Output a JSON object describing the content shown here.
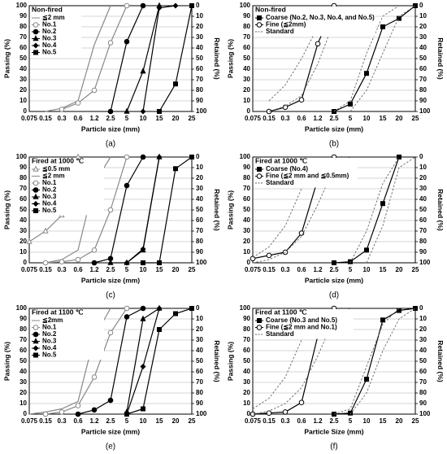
{
  "chart_data": [
    {
      "type": "line",
      "panel": "(a)",
      "title": "Non-fired",
      "xlabel": "Particle size (mm)",
      "ylabel": "Passing (%)",
      "y2label": "Retained (%)",
      "categories": [
        "0.075",
        "0.15",
        "0.3",
        "0.6",
        "1.2",
        "2.5",
        "5",
        "10",
        "15",
        "20",
        "25"
      ],
      "ylim": [
        0,
        100
      ],
      "yticks": [
        0,
        10,
        20,
        30,
        40,
        50,
        60,
        70,
        80,
        90,
        100
      ],
      "y2lim": [
        100,
        0
      ],
      "y2ticks": [
        0,
        10,
        20,
        30,
        40,
        50,
        60,
        70,
        80,
        90,
        100
      ],
      "grid": true,
      "series": [
        {
          "name": "≦2 mm",
          "color": "#888888",
          "marker": "none",
          "values": [
            null,
            0,
            3,
            10,
            63,
            100,
            null,
            null,
            null,
            null,
            null
          ]
        },
        {
          "name": "No.1",
          "color": "#888888",
          "marker": "open-circle",
          "values": [
            null,
            null,
            2,
            8,
            20,
            65,
            100,
            null,
            null,
            null,
            null
          ]
        },
        {
          "name": "No.2",
          "color": "#000000",
          "marker": "circle",
          "values": [
            null,
            null,
            null,
            null,
            null,
            0,
            66,
            100,
            null,
            null,
            null
          ]
        },
        {
          "name": "No.3",
          "color": "#000000",
          "marker": "triangle",
          "values": [
            null,
            null,
            null,
            null,
            null,
            null,
            0,
            38,
            100,
            null,
            null
          ]
        },
        {
          "name": "No.4",
          "color": "#000000",
          "marker": "diamond",
          "values": [
            null,
            null,
            null,
            null,
            null,
            null,
            null,
            0,
            98,
            100,
            null
          ]
        },
        {
          "name": "No.5",
          "color": "#000000",
          "marker": "square",
          "values": [
            null,
            null,
            null,
            null,
            null,
            null,
            null,
            null,
            0,
            26,
            100
          ]
        }
      ]
    },
    {
      "type": "line",
      "panel": "(b)",
      "title": "Non-fired",
      "xlabel": "Particle size (mm)",
      "ylabel": "Passing (%)",
      "y2label": "Retained (%)",
      "categories": [
        "0.075",
        "0.15",
        "0.3",
        "0.6",
        "1.2",
        "2.5",
        "5",
        "10",
        "15",
        "20",
        "25"
      ],
      "ylim": [
        0,
        100
      ],
      "yticks": [
        0,
        10,
        20,
        30,
        40,
        50,
        60,
        70,
        80,
        90,
        100
      ],
      "y2lim": [
        100,
        0
      ],
      "y2ticks": [
        0,
        10,
        20,
        30,
        40,
        50,
        60,
        70,
        80,
        90,
        100
      ],
      "grid": true,
      "series": [
        {
          "name": "Coarse (No.2, No.3, No.4, and No.5)",
          "color": "#000000",
          "marker": "square",
          "values": [
            null,
            null,
            null,
            null,
            null,
            0,
            7,
            36,
            80,
            88,
            100
          ]
        },
        {
          "name": "Fine (≦2mm)",
          "color": "#000000",
          "marker": "open-circle",
          "values": [
            null,
            0,
            4,
            11,
            64,
            100,
            null,
            null,
            null,
            null,
            null
          ]
        },
        {
          "name": "Standard",
          "color": "#666666",
          "marker": "none",
          "dash": true,
          "lines": [
            [
              null,
              10,
              25,
              50,
              80,
              100,
              null,
              null,
              null,
              null,
              null
            ],
            [
              null,
              0,
              5,
              15,
              45,
              85,
              100,
              null,
              null,
              null,
              null
            ],
            [
              null,
              null,
              null,
              null,
              null,
              0,
              10,
              55,
              90,
              100,
              null
            ],
            [
              null,
              null,
              null,
              null,
              null,
              null,
              0,
              20,
              55,
              90,
              100
            ]
          ]
        }
      ]
    },
    {
      "type": "line",
      "panel": "(c)",
      "title": "Fired at 1000 ℃",
      "xlabel": "Particle size (mm)",
      "ylabel": "Passing (%)",
      "y2label": "Retained (%)",
      "categories": [
        "0.075",
        "0.15",
        "0.3",
        "0.6",
        "1.2",
        "2.5",
        "5",
        "10",
        "15",
        "20",
        "25"
      ],
      "ylim": [
        0,
        100
      ],
      "yticks": [
        0,
        10,
        20,
        30,
        40,
        50,
        60,
        70,
        80,
        90,
        100
      ],
      "y2lim": [
        100,
        0
      ],
      "y2ticks": [
        0,
        10,
        20,
        30,
        40,
        50,
        60,
        70,
        80,
        90,
        100
      ],
      "grid": true,
      "series": [
        {
          "name": "≦0.5 mm",
          "color": "#888888",
          "marker": "open-triangle",
          "values": [
            20,
            30,
            45,
            100,
            null,
            null,
            null,
            null,
            null,
            null,
            null
          ]
        },
        {
          "name": "≦2 mm",
          "color": "#888888",
          "marker": "none",
          "values": [
            null,
            0,
            3,
            12,
            75,
            100,
            null,
            null,
            null,
            null,
            null
          ]
        },
        {
          "name": "No.1",
          "color": "#888888",
          "marker": "open-circle",
          "values": [
            null,
            0,
            1,
            3,
            12,
            50,
            100,
            null,
            null,
            null,
            null
          ]
        },
        {
          "name": "No.2",
          "color": "#000000",
          "marker": "circle",
          "values": [
            null,
            null,
            null,
            null,
            0,
            4,
            73,
            100,
            null,
            null,
            null
          ]
        },
        {
          "name": "No.3",
          "color": "#000000",
          "marker": "triangle",
          "values": [
            null,
            null,
            null,
            null,
            null,
            0,
            0,
            12,
            100,
            null,
            null
          ]
        },
        {
          "name": "No.4",
          "color": "#000000",
          "marker": "diamond",
          "values": [
            null,
            null,
            null,
            null,
            null,
            null,
            0,
            13,
            100,
            null,
            null
          ]
        },
        {
          "name": "No.5",
          "color": "#000000",
          "marker": "square",
          "values": [
            null,
            null,
            null,
            null,
            null,
            null,
            null,
            0,
            0,
            89,
            100
          ]
        }
      ]
    },
    {
      "type": "line",
      "panel": "(d)",
      "title": "Fired at 1000 ℃",
      "xlabel": "Particle size (mm)",
      "ylabel": "Passing (%)",
      "y2label": "Retained (%)",
      "categories": [
        "0.075",
        "0.15",
        "0.3",
        "0.6",
        "1.2",
        "2.5",
        "5",
        "10",
        "15",
        "20",
        "25"
      ],
      "ylim": [
        0,
        100
      ],
      "yticks": [
        0,
        10,
        20,
        30,
        40,
        50,
        60,
        70,
        80,
        90,
        100
      ],
      "y2lim": [
        100,
        0
      ],
      "y2ticks": [
        0,
        10,
        20,
        30,
        40,
        50,
        60,
        70,
        80,
        90,
        100
      ],
      "grid": true,
      "series": [
        {
          "name": "Coarse (No.4)",
          "color": "#000000",
          "marker": "square",
          "values": [
            null,
            null,
            null,
            null,
            null,
            0,
            1,
            12,
            56,
            100,
            null
          ]
        },
        {
          "name": "Fine (≦2 mm and ≦0.5mm)",
          "color": "#000000",
          "marker": "open-circle",
          "values": [
            4,
            7,
            10,
            28,
            79,
            100,
            null,
            null,
            null,
            null,
            null
          ]
        },
        {
          "name": "Standard",
          "color": "#666666",
          "marker": "none",
          "dash": true,
          "lines": [
            [
              5,
              15,
              35,
              70,
              95,
              100,
              null,
              null,
              null,
              null,
              null
            ],
            [
              0,
              3,
              10,
              25,
              55,
              90,
              100,
              null,
              null,
              null,
              null
            ],
            [
              null,
              null,
              null,
              null,
              null,
              null,
              0,
              30,
              75,
              100,
              null
            ],
            [
              null,
              null,
              null,
              null,
              null,
              null,
              null,
              0,
              35,
              90,
              100
            ]
          ]
        }
      ]
    },
    {
      "type": "line",
      "panel": "(e)",
      "title": "Fired at 1100 ℃",
      "xlabel": "Particle size (mm)",
      "ylabel": "Passing (%)",
      "y2label": "Retained (%)",
      "categories": [
        "0.075",
        "0.15",
        "0.3",
        "0.6",
        "1.2",
        "2.5",
        "5",
        "10",
        "15",
        "20",
        "25"
      ],
      "ylim": [
        0,
        100
      ],
      "yticks": [
        0,
        10,
        20,
        30,
        40,
        50,
        60,
        70,
        80,
        90,
        100
      ],
      "y2lim": [
        100,
        0
      ],
      "y2ticks": [
        0,
        10,
        20,
        30,
        40,
        50,
        60,
        70,
        80,
        90,
        100
      ],
      "grid": true,
      "series": [
        {
          "name": "≦2mm",
          "color": "#888888",
          "marker": "none",
          "values": [
            0,
            2,
            5,
            12,
            73,
            100,
            null,
            null,
            null,
            null,
            null
          ]
        },
        {
          "name": "No.1",
          "color": "#888888",
          "marker": "open-circle",
          "values": [
            null,
            0,
            2,
            8,
            35,
            77,
            100,
            null,
            null,
            null,
            null
          ]
        },
        {
          "name": "No.2",
          "color": "#000000",
          "marker": "circle",
          "values": [
            null,
            null,
            null,
            0,
            4,
            13,
            92,
            100,
            null,
            null,
            null
          ]
        },
        {
          "name": "No.3",
          "color": "#000000",
          "marker": "triangle",
          "values": [
            null,
            null,
            null,
            null,
            null,
            null,
            2,
            90,
            100,
            null,
            null
          ]
        },
        {
          "name": "No.4",
          "color": "#000000",
          "marker": "diamond",
          "values": [
            null,
            null,
            null,
            null,
            null,
            null,
            0,
            45,
            100,
            null,
            null
          ]
        },
        {
          "name": "No.5",
          "color": "#000000",
          "marker": "square",
          "values": [
            null,
            null,
            null,
            null,
            null,
            null,
            0,
            5,
            80,
            95,
            100
          ]
        }
      ]
    },
    {
      "type": "line",
      "panel": "(f)",
      "title": "Fired at 1100 ℃",
      "xlabel": "Particle Size (mm)",
      "ylabel": "Passing (%)",
      "y2label": "Retained (%)",
      "categories": [
        "0.075",
        "0.15",
        "0.3",
        "0.6",
        "1.2",
        "2.5",
        "5",
        "10",
        "15",
        "20",
        "25"
      ],
      "ylim": [
        0,
        100
      ],
      "yticks": [
        0,
        10,
        20,
        30,
        40,
        50,
        60,
        70,
        80,
        90,
        100
      ],
      "y2lim": [
        100,
        0
      ],
      "y2ticks": [
        0,
        10,
        20,
        30,
        40,
        50,
        60,
        70,
        80,
        90,
        100
      ],
      "grid": true,
      "series": [
        {
          "name": "Coarse (No.3 and No.5)",
          "color": "#000000",
          "marker": "square",
          "values": [
            null,
            null,
            null,
            null,
            null,
            0,
            1,
            33,
            89,
            98,
            100
          ]
        },
        {
          "name": "Fine (≦2 mm and No.1)",
          "color": "#000000",
          "marker": "open-circle",
          "values": [
            0,
            1,
            2,
            11,
            74,
            100,
            null,
            null,
            null,
            null,
            null
          ]
        },
        {
          "name": "Standard",
          "color": "#666666",
          "marker": "none",
          "dash": true,
          "lines": [
            [
              5,
              15,
              35,
              70,
              95,
              100,
              null,
              null,
              null,
              null,
              null
            ],
            [
              0,
              3,
              10,
              25,
              55,
              90,
              100,
              null,
              null,
              null,
              null
            ],
            [
              null,
              null,
              null,
              null,
              null,
              0,
              5,
              45,
              85,
              100,
              null
            ],
            [
              null,
              null,
              null,
              null,
              null,
              null,
              0,
              20,
              60,
              90,
              100
            ]
          ]
        }
      ]
    }
  ]
}
